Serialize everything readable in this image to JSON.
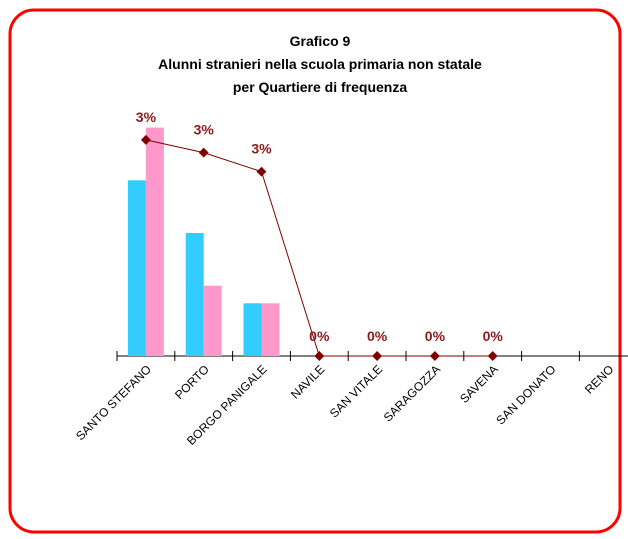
{
  "chart_data": {
    "type": "bar_line",
    "title": [
      "Grafico 9",
      "Alunni stranieri nella scuola primaria non statale",
      "per Quartiere di frequenza"
    ],
    "categories": [
      "SANTO STEFANO",
      "PORTO",
      "BORGO PANIGALE",
      "NAVILE",
      "SAN VITALE",
      "SARAGOZZA",
      "SAVENA",
      "SAN DONATO",
      "RENO"
    ],
    "ylim": [
      0,
      14
    ],
    "y2lim": [
      0,
      3.87
    ],
    "series": [
      {
        "type": "bar",
        "color": "#33ccff",
        "values": [
          10,
          7,
          3,
          0,
          0,
          0,
          0,
          0,
          0
        ]
      },
      {
        "type": "bar",
        "color": "#ff99cc",
        "values": [
          13,
          4,
          3,
          0,
          0,
          0,
          0,
          0,
          0
        ]
      },
      {
        "type": "line",
        "axis": "y2",
        "color": "#800000",
        "values": [
          3.4,
          3.2,
          2.9,
          0,
          0,
          0,
          0,
          null,
          null
        ],
        "value_labels": [
          "3%",
          "3%",
          "3%",
          "0%",
          "0%",
          "0%",
          "0%",
          null,
          null
        ]
      }
    ],
    "border_color": "#ff0000"
  }
}
